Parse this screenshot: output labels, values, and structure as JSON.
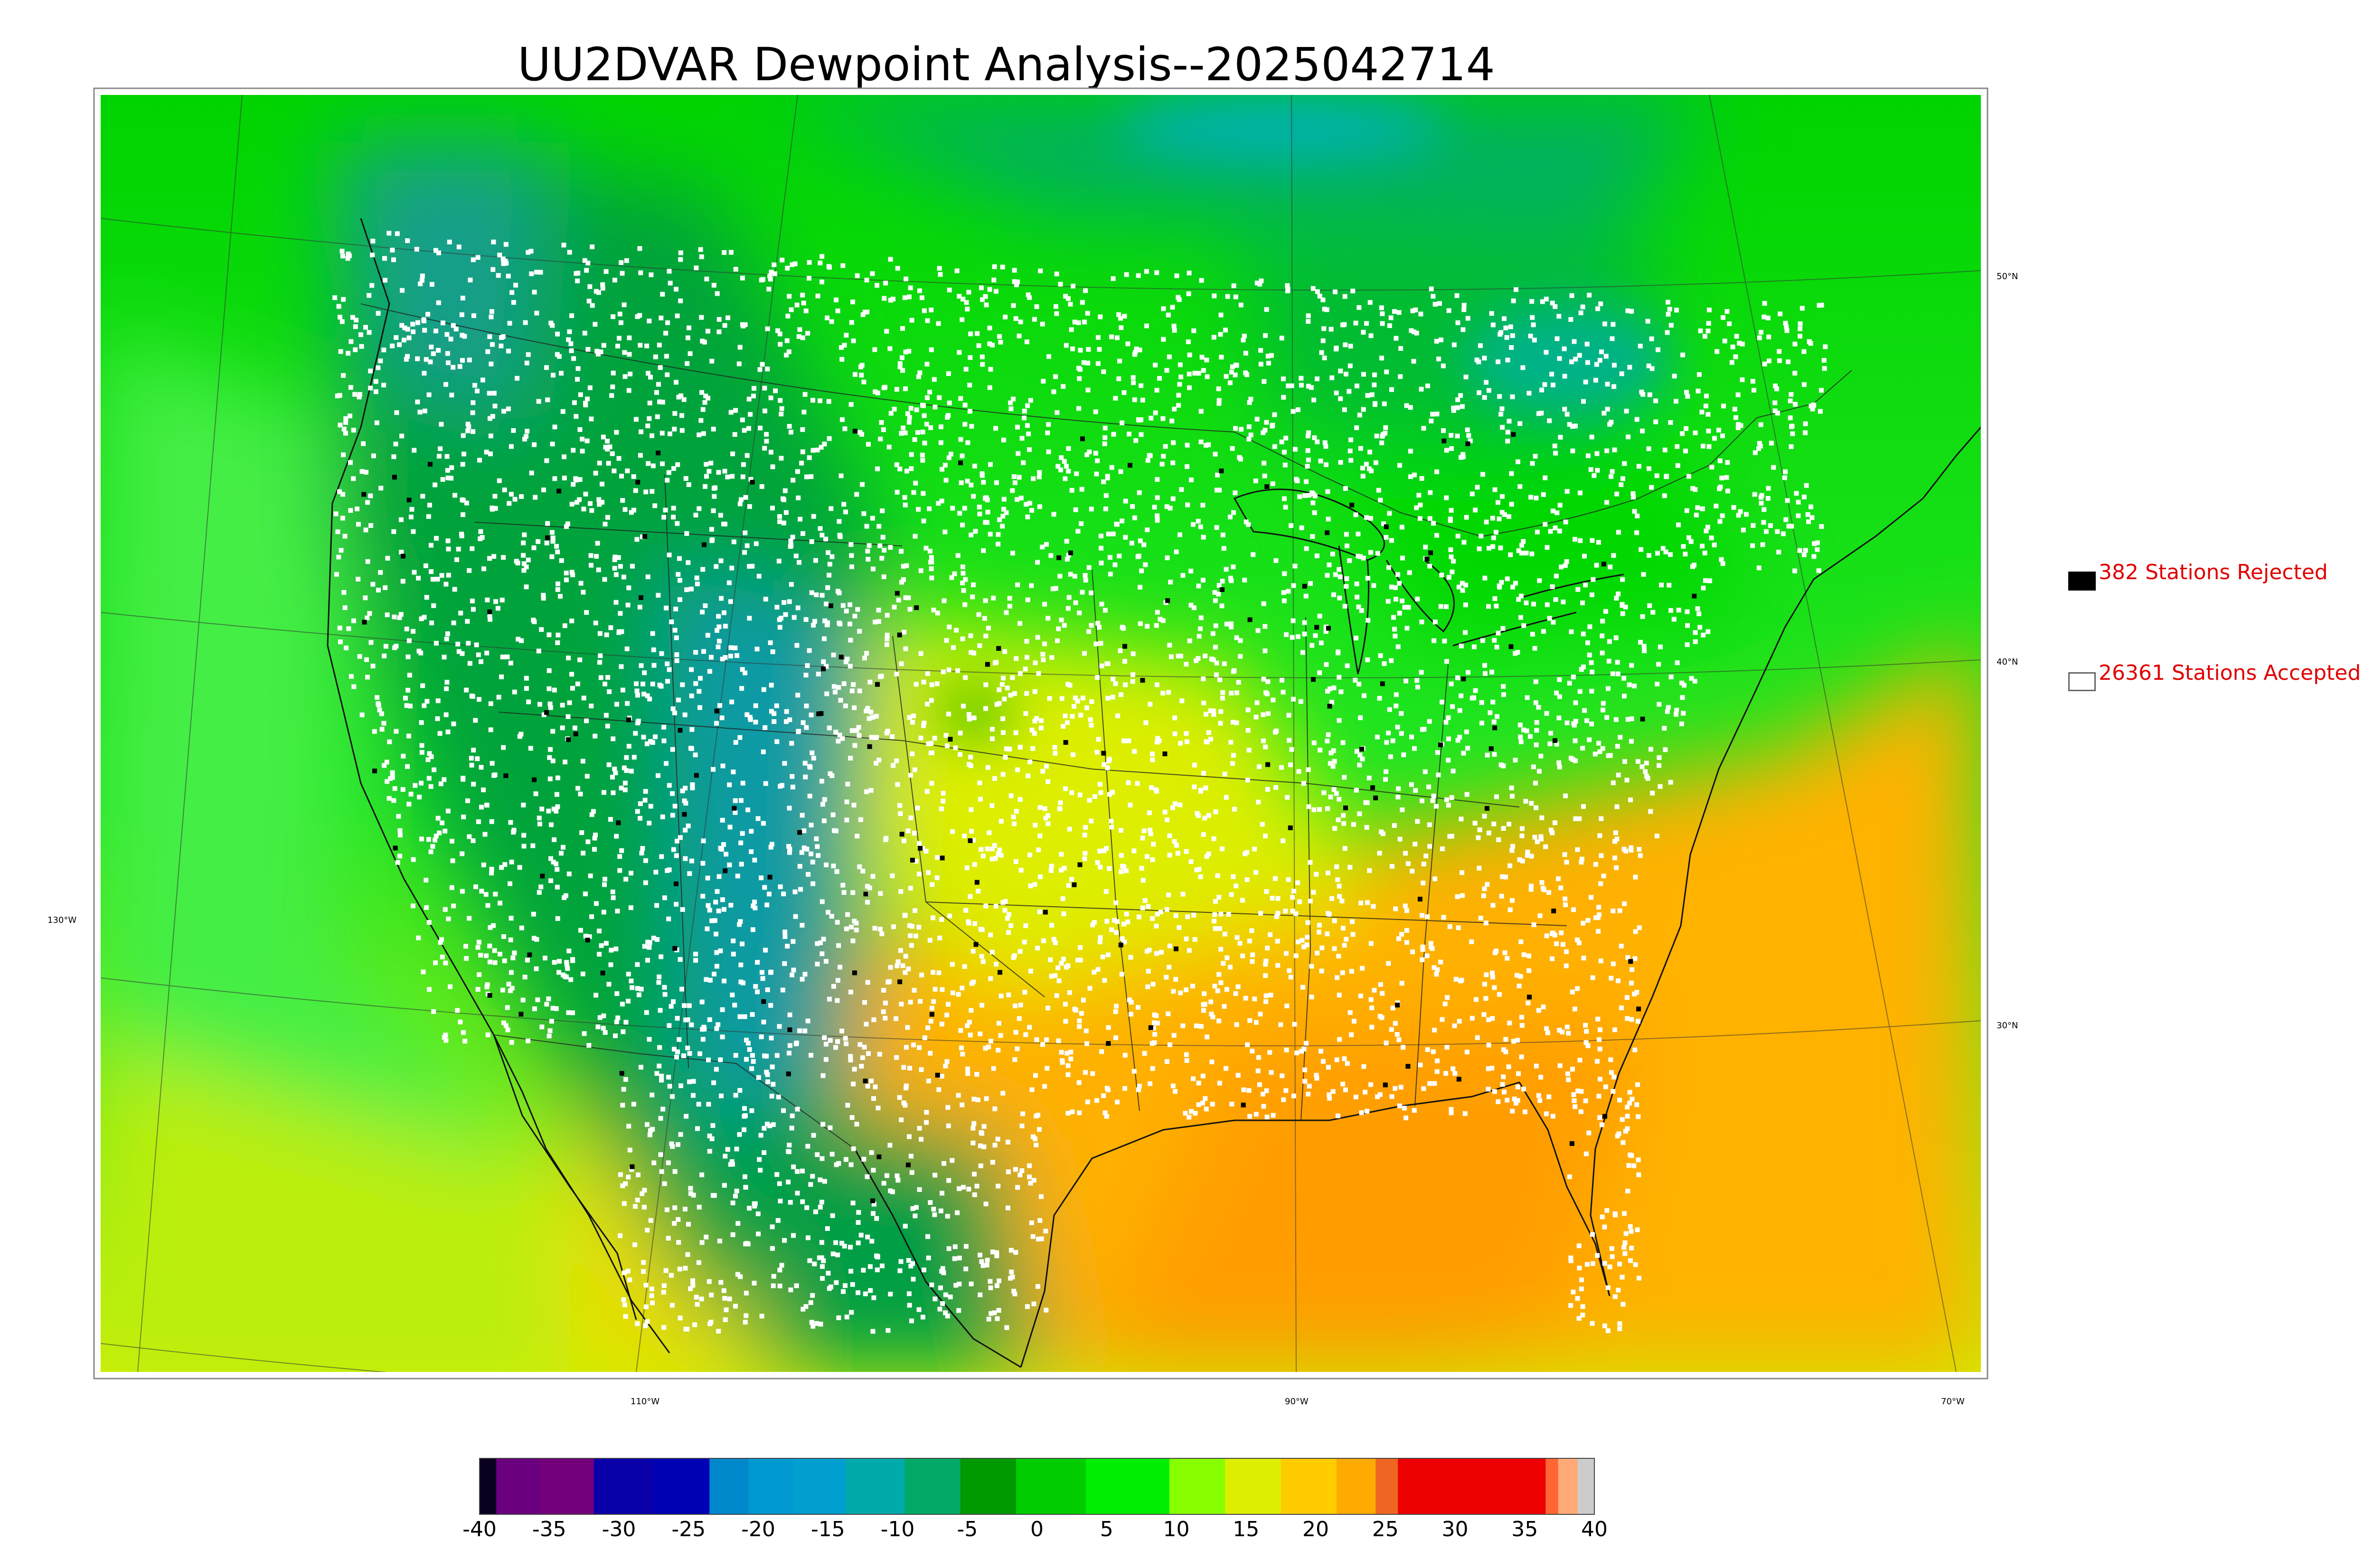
{
  "title": "UU2DVAR Dewpoint Analysis--2025042714",
  "legend": {
    "rejected": {
      "label": "382 Stations Rejected",
      "box_color": "#000000"
    },
    "accepted": {
      "label": "26361 Stations Accepted",
      "box_color": "#ffffff"
    }
  },
  "lat_labels": [
    "50°N",
    "40°N",
    "30°N"
  ],
  "lon_labels": [
    "130°W",
    "110°W",
    "90°W",
    "70°W"
  ],
  "colorbar": {
    "ticks": [
      "-40",
      "-35",
      "-30",
      "-25",
      "-20",
      "-15",
      "-10",
      "-5",
      "0",
      "5",
      "10",
      "15",
      "20",
      "25",
      "30",
      "35",
      "40"
    ],
    "min": -40,
    "max": 40,
    "segments": [
      {
        "from": -40,
        "to": -38.8,
        "color": "#0a0020"
      },
      {
        "from": -38.8,
        "to": -35.6,
        "color": "#6a0080"
      },
      {
        "from": -35.6,
        "to": -31.8,
        "color": "#73007a"
      },
      {
        "from": -31.8,
        "to": -27.5,
        "color": "#0a00aa"
      },
      {
        "from": -27.5,
        "to": -23.5,
        "color": "#0000b4"
      },
      {
        "from": -23.5,
        "to": -20.7,
        "color": "#0088cc"
      },
      {
        "from": -20.7,
        "to": -17.5,
        "color": "#0099d0"
      },
      {
        "from": -17.5,
        "to": -13.7,
        "color": "#009fcf"
      },
      {
        "from": -13.7,
        "to": -9.5,
        "color": "#00aaaa"
      },
      {
        "from": -9.5,
        "to": -5.5,
        "color": "#00aa66"
      },
      {
        "from": -5.5,
        "to": -1.5,
        "color": "#009900"
      },
      {
        "from": -1.5,
        "to": 3.5,
        "color": "#00cc00"
      },
      {
        "from": 3.5,
        "to": 9.5,
        "color": "#00ee00"
      },
      {
        "from": 9.5,
        "to": 13.5,
        "color": "#88ff00"
      },
      {
        "from": 13.5,
        "to": 17.5,
        "color": "#ddee00"
      },
      {
        "from": 17.5,
        "to": 21.5,
        "color": "#ffcc00"
      },
      {
        "from": 21.5,
        "to": 24.3,
        "color": "#ffaa00"
      },
      {
        "from": 24.3,
        "to": 25.9,
        "color": "#ee6622"
      },
      {
        "from": 25.9,
        "to": 36.5,
        "color": "#ee0000"
      },
      {
        "from": 36.5,
        "to": 37.4,
        "color": "#ff6633"
      },
      {
        "from": 37.4,
        "to": 38.8,
        "color": "#ffaa77"
      },
      {
        "from": 38.8,
        "to": 40,
        "color": "#cccccc"
      }
    ]
  },
  "colors": {
    "mountain_dry": "#00a33a",
    "very_dry": "#0099aa",
    "moist": "#00e600",
    "humid": "#ffb000",
    "ocean_west": "#33ee33",
    "station_accepted": "#ffffff",
    "station_rejected": "#000000"
  }
}
